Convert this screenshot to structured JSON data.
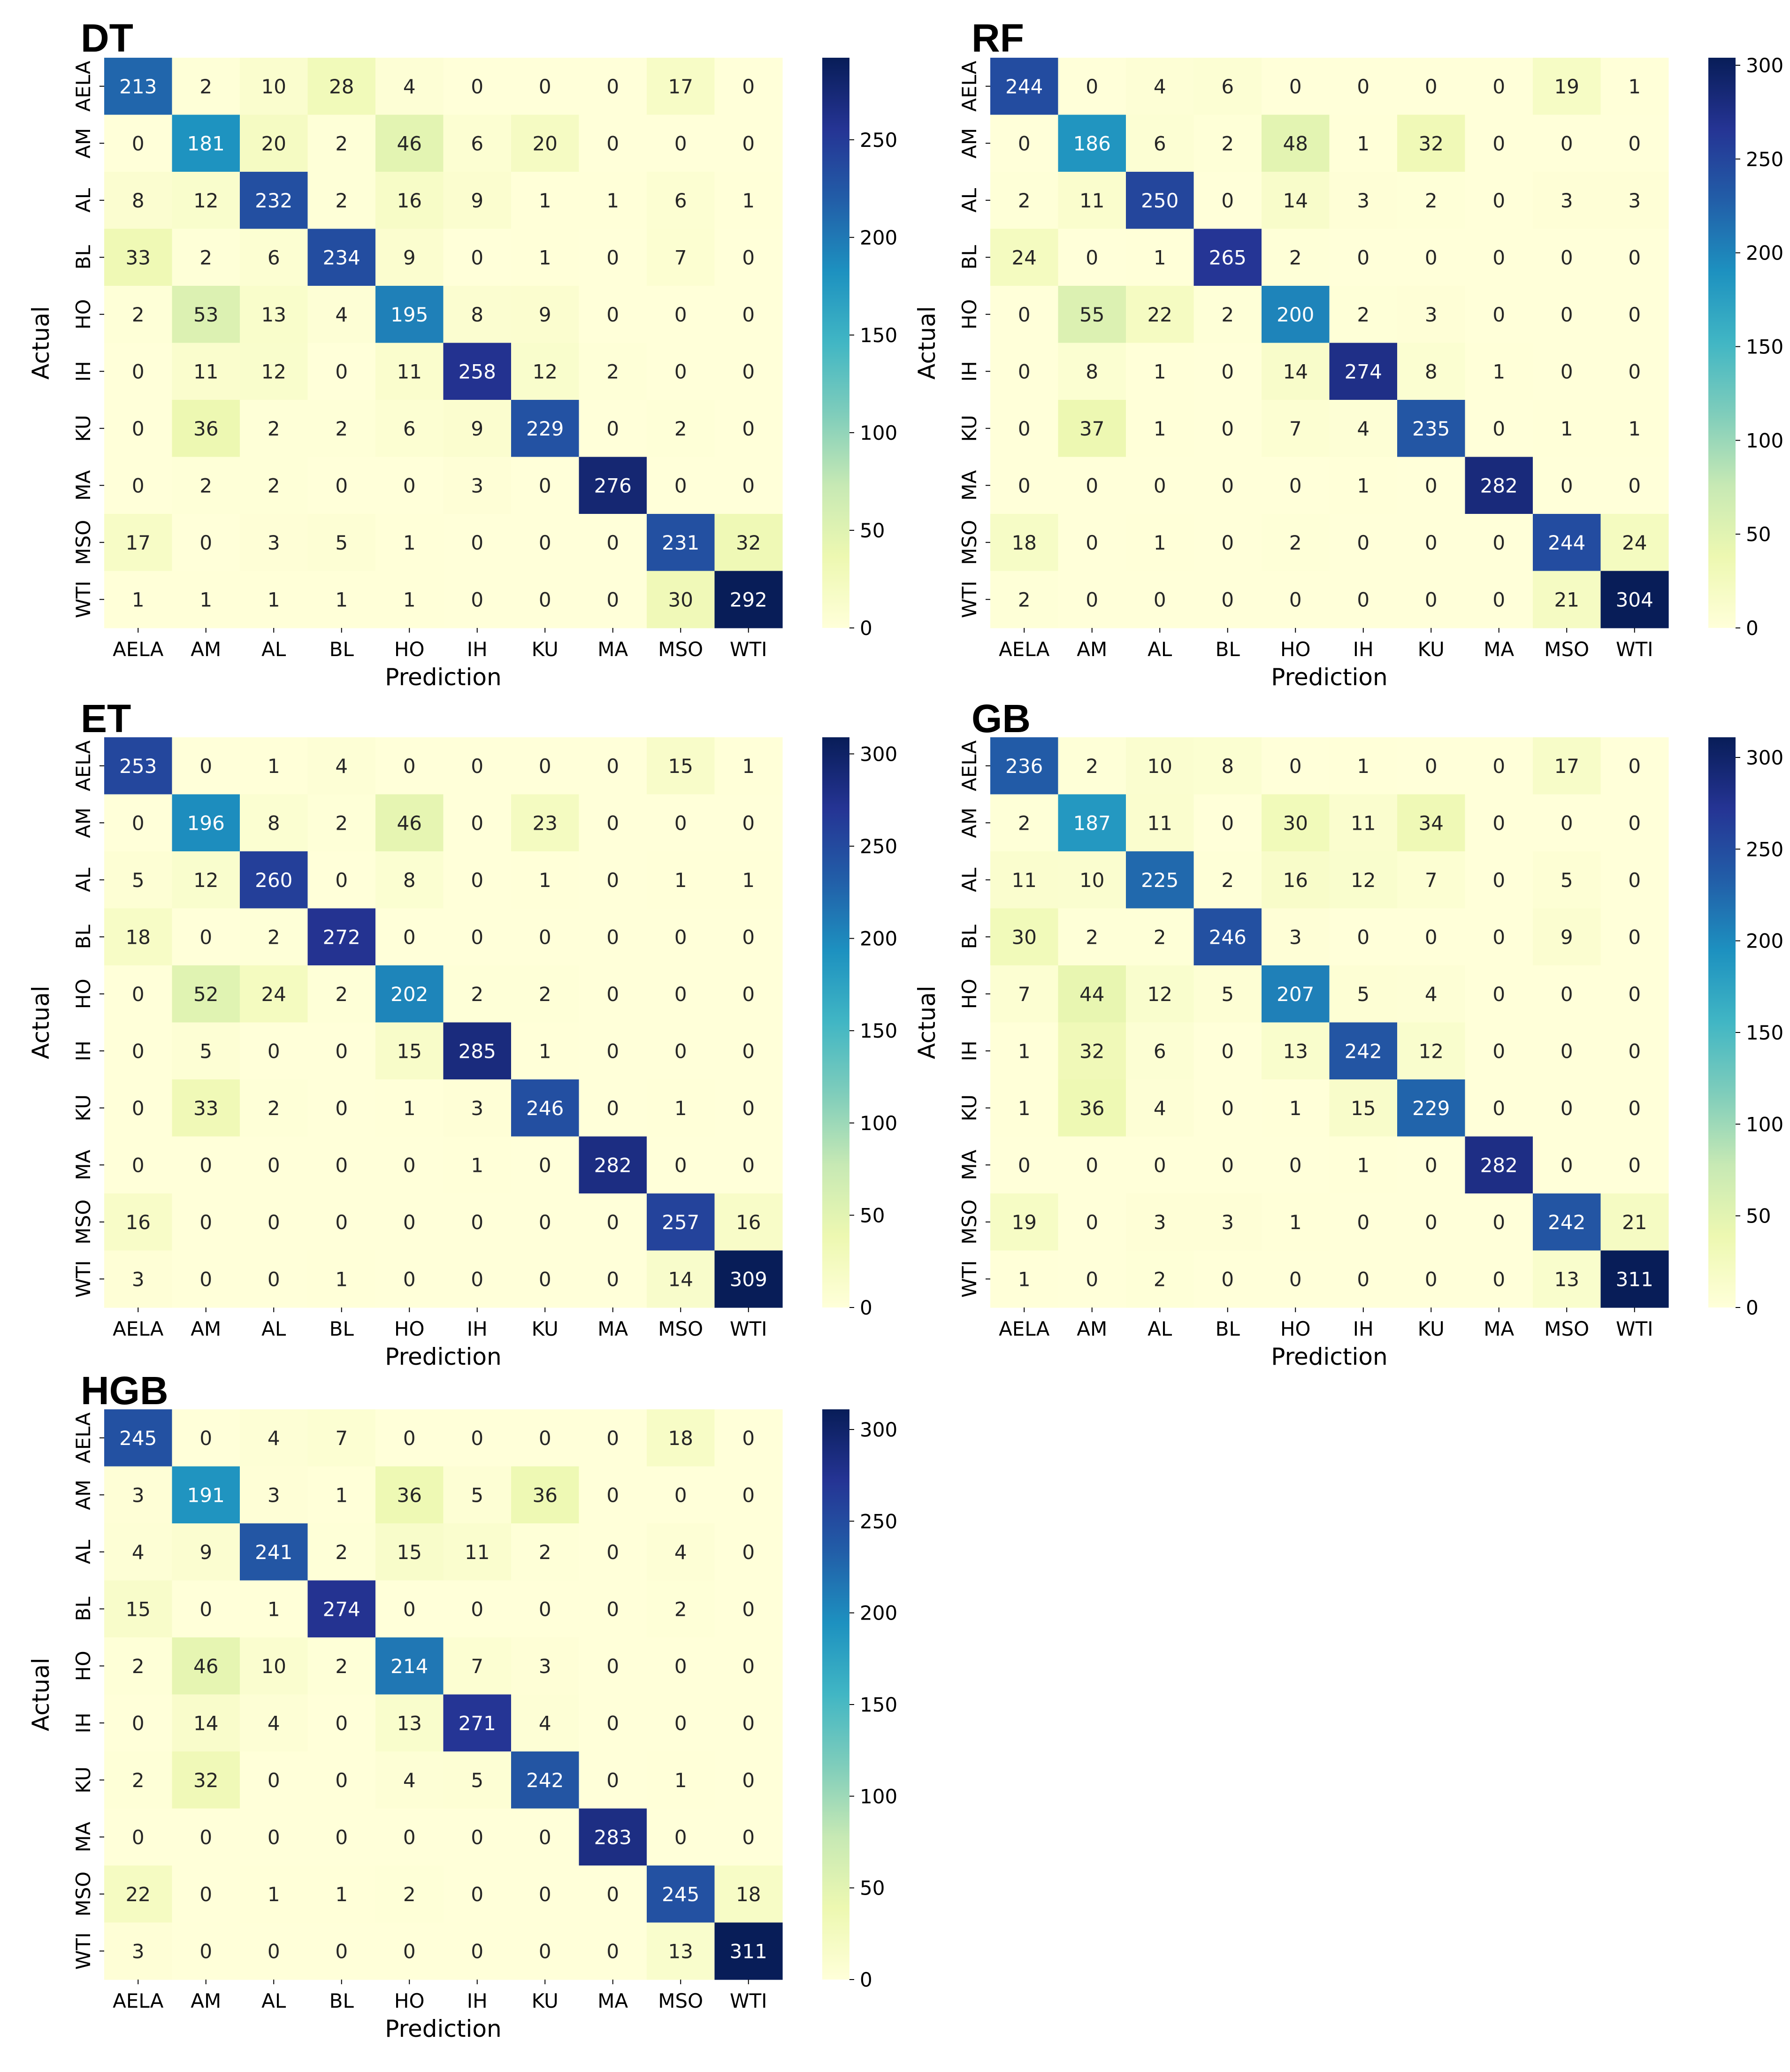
{
  "figure": {
    "colormap": {
      "name": "YlGnBu",
      "stops": [
        "#ffffd9",
        "#edf8b1",
        "#c7e9b4",
        "#7fcdbb",
        "#41b6c4",
        "#1d91c0",
        "#225ea8",
        "#253494",
        "#081d58"
      ]
    },
    "text_light": "#ffffff",
    "text_dark": "#262626"
  },
  "chart_data": [
    {
      "type": "heatmap",
      "title": "DT",
      "xlabel": "Prediction",
      "ylabel": "Actual",
      "x_categories": [
        "AELA",
        "AM",
        "AL",
        "BL",
        "HO",
        "IH",
        "KU",
        "MA",
        "MSO",
        "WTI"
      ],
      "y_categories": [
        "AELA",
        "AM",
        "AL",
        "BL",
        "HO",
        "IH",
        "KU",
        "MA",
        "MSO",
        "WTI"
      ],
      "values": [
        [
          213,
          2,
          10,
          28,
          4,
          0,
          0,
          0,
          17,
          0
        ],
        [
          0,
          181,
          20,
          2,
          46,
          6,
          20,
          0,
          0,
          0
        ],
        [
          8,
          12,
          232,
          2,
          16,
          9,
          1,
          1,
          6,
          1
        ],
        [
          33,
          2,
          6,
          234,
          9,
          0,
          1,
          0,
          7,
          0
        ],
        [
          2,
          53,
          13,
          4,
          195,
          8,
          9,
          0,
          0,
          0
        ],
        [
          0,
          11,
          12,
          0,
          11,
          258,
          12,
          2,
          0,
          0
        ],
        [
          0,
          36,
          2,
          2,
          6,
          9,
          229,
          0,
          2,
          0
        ],
        [
          0,
          2,
          2,
          0,
          0,
          3,
          0,
          276,
          0,
          0
        ],
        [
          17,
          0,
          3,
          5,
          1,
          0,
          0,
          0,
          231,
          32
        ],
        [
          1,
          1,
          1,
          1,
          1,
          0,
          0,
          0,
          30,
          292
        ]
      ],
      "color_range": [
        0,
        292
      ],
      "colorbar_ticks": [
        0,
        50,
        100,
        150,
        200,
        250
      ]
    },
    {
      "type": "heatmap",
      "title": "RF",
      "xlabel": "Prediction",
      "ylabel": "Actual",
      "x_categories": [
        "AELA",
        "AM",
        "AL",
        "BL",
        "HO",
        "IH",
        "KU",
        "MA",
        "MSO",
        "WTI"
      ],
      "y_categories": [
        "AELA",
        "AM",
        "AL",
        "BL",
        "HO",
        "IH",
        "KU",
        "MA",
        "MSO",
        "WTI"
      ],
      "values": [
        [
          244,
          0,
          4,
          6,
          0,
          0,
          0,
          0,
          19,
          1
        ],
        [
          0,
          186,
          6,
          2,
          48,
          1,
          32,
          0,
          0,
          0
        ],
        [
          2,
          11,
          250,
          0,
          14,
          3,
          2,
          0,
          3,
          3
        ],
        [
          24,
          0,
          1,
          265,
          2,
          0,
          0,
          0,
          0,
          0
        ],
        [
          0,
          55,
          22,
          2,
          200,
          2,
          3,
          0,
          0,
          0
        ],
        [
          0,
          8,
          1,
          0,
          14,
          274,
          8,
          1,
          0,
          0
        ],
        [
          0,
          37,
          1,
          0,
          7,
          4,
          235,
          0,
          1,
          1
        ],
        [
          0,
          0,
          0,
          0,
          0,
          1,
          0,
          282,
          0,
          0
        ],
        [
          18,
          0,
          1,
          0,
          2,
          0,
          0,
          0,
          244,
          24
        ],
        [
          2,
          0,
          0,
          0,
          0,
          0,
          0,
          0,
          21,
          304
        ]
      ],
      "color_range": [
        0,
        304
      ],
      "colorbar_ticks": [
        0,
        50,
        100,
        150,
        200,
        250,
        300
      ]
    },
    {
      "type": "heatmap",
      "title": "ET",
      "xlabel": "Prediction",
      "ylabel": "Actual",
      "x_categories": [
        "AELA",
        "AM",
        "AL",
        "BL",
        "HO",
        "IH",
        "KU",
        "MA",
        "MSO",
        "WTI"
      ],
      "y_categories": [
        "AELA",
        "AM",
        "AL",
        "BL",
        "HO",
        "IH",
        "KU",
        "MA",
        "MSO",
        "WTI"
      ],
      "values": [
        [
          253,
          0,
          1,
          4,
          0,
          0,
          0,
          0,
          15,
          1
        ],
        [
          0,
          196,
          8,
          2,
          46,
          0,
          23,
          0,
          0,
          0
        ],
        [
          5,
          12,
          260,
          0,
          8,
          0,
          1,
          0,
          1,
          1
        ],
        [
          18,
          0,
          2,
          272,
          0,
          0,
          0,
          0,
          0,
          0
        ],
        [
          0,
          52,
          24,
          2,
          202,
          2,
          2,
          0,
          0,
          0
        ],
        [
          0,
          5,
          0,
          0,
          15,
          285,
          1,
          0,
          0,
          0
        ],
        [
          0,
          33,
          2,
          0,
          1,
          3,
          246,
          0,
          1,
          0
        ],
        [
          0,
          0,
          0,
          0,
          0,
          1,
          0,
          282,
          0,
          0
        ],
        [
          16,
          0,
          0,
          0,
          0,
          0,
          0,
          0,
          257,
          16
        ],
        [
          3,
          0,
          0,
          1,
          0,
          0,
          0,
          0,
          14,
          309
        ]
      ],
      "color_range": [
        0,
        309
      ],
      "colorbar_ticks": [
        0,
        50,
        100,
        150,
        200,
        250,
        300
      ]
    },
    {
      "type": "heatmap",
      "title": "GB",
      "xlabel": "Prediction",
      "ylabel": "Actual",
      "x_categories": [
        "AELA",
        "AM",
        "AL",
        "BL",
        "HO",
        "IH",
        "KU",
        "MA",
        "MSO",
        "WTI"
      ],
      "y_categories": [
        "AELA",
        "AM",
        "AL",
        "BL",
        "HO",
        "IH",
        "KU",
        "MA",
        "MSO",
        "WTI"
      ],
      "values": [
        [
          236,
          2,
          10,
          8,
          0,
          1,
          0,
          0,
          17,
          0
        ],
        [
          2,
          187,
          11,
          0,
          30,
          11,
          34,
          0,
          0,
          0
        ],
        [
          11,
          10,
          225,
          2,
          16,
          12,
          7,
          0,
          5,
          0
        ],
        [
          30,
          2,
          2,
          246,
          3,
          0,
          0,
          0,
          9,
          0
        ],
        [
          7,
          44,
          12,
          5,
          207,
          5,
          4,
          0,
          0,
          0
        ],
        [
          1,
          32,
          6,
          0,
          13,
          242,
          12,
          0,
          0,
          0
        ],
        [
          1,
          36,
          4,
          0,
          1,
          15,
          229,
          0,
          0,
          0
        ],
        [
          0,
          0,
          0,
          0,
          0,
          1,
          0,
          282,
          0,
          0
        ],
        [
          19,
          0,
          3,
          3,
          1,
          0,
          0,
          0,
          242,
          21
        ],
        [
          1,
          0,
          2,
          0,
          0,
          0,
          0,
          0,
          13,
          311
        ]
      ],
      "color_range": [
        0,
        311
      ],
      "colorbar_ticks": [
        0,
        50,
        100,
        150,
        200,
        250,
        300
      ]
    },
    {
      "type": "heatmap",
      "title": "HGB",
      "xlabel": "Prediction",
      "ylabel": "Actual",
      "x_categories": [
        "AELA",
        "AM",
        "AL",
        "BL",
        "HO",
        "IH",
        "KU",
        "MA",
        "MSO",
        "WTI"
      ],
      "y_categories": [
        "AELA",
        "AM",
        "AL",
        "BL",
        "HO",
        "IH",
        "KU",
        "MA",
        "MSO",
        "WTI"
      ],
      "values": [
        [
          245,
          0,
          4,
          7,
          0,
          0,
          0,
          0,
          18,
          0
        ],
        [
          3,
          191,
          3,
          1,
          36,
          5,
          36,
          0,
          0,
          0
        ],
        [
          4,
          9,
          241,
          2,
          15,
          11,
          2,
          0,
          4,
          0
        ],
        [
          15,
          0,
          1,
          274,
          0,
          0,
          0,
          0,
          2,
          0
        ],
        [
          2,
          46,
          10,
          2,
          214,
          7,
          3,
          0,
          0,
          0
        ],
        [
          0,
          14,
          4,
          0,
          13,
          271,
          4,
          0,
          0,
          0
        ],
        [
          2,
          32,
          0,
          0,
          4,
          5,
          242,
          0,
          1,
          0
        ],
        [
          0,
          0,
          0,
          0,
          0,
          0,
          0,
          283,
          0,
          0
        ],
        [
          22,
          0,
          1,
          1,
          2,
          0,
          0,
          0,
          245,
          18
        ],
        [
          3,
          0,
          0,
          0,
          0,
          0,
          0,
          0,
          13,
          311
        ]
      ],
      "color_range": [
        0,
        311
      ],
      "colorbar_ticks": [
        0,
        50,
        100,
        150,
        200,
        250,
        300
      ]
    }
  ]
}
